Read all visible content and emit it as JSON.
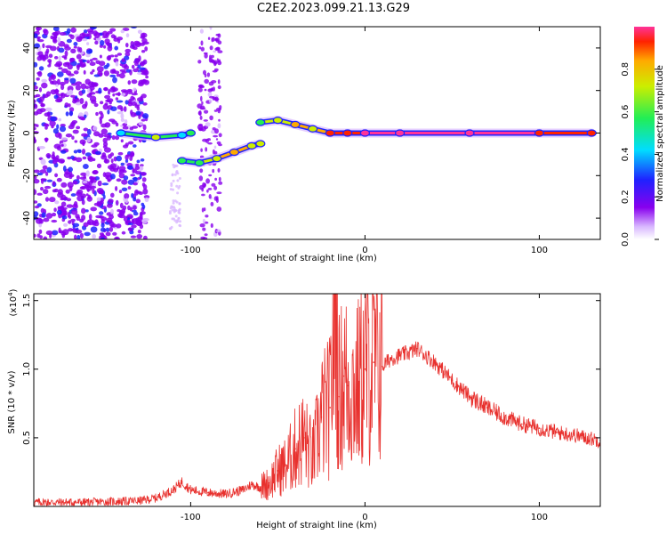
{
  "title": "C2E2.2023.099.21.13.G29",
  "chart_data": [
    {
      "type": "heatmap",
      "xlabel": "Height of straight line (km)",
      "ylabel": "Frequency (Hz)",
      "xlim": [
        -190,
        135
      ],
      "ylim": [
        -50,
        50
      ],
      "xticks": [
        -100,
        0,
        100
      ],
      "yticks": [
        -40,
        -20,
        0,
        20,
        40
      ],
      "colorbar": {
        "label": "Normalized spectral amplitude",
        "range": [
          0,
          1
        ],
        "ticks": [
          "0.0",
          "0.2",
          "0.4",
          "0.6",
          "0.8"
        ]
      },
      "signal_track": [
        {
          "x": -140,
          "y": 0,
          "amp": 0.3
        },
        {
          "x": -120,
          "y": -2,
          "amp": 0.6
        },
        {
          "x": -105,
          "y": -1,
          "amp": 0.4
        },
        {
          "x": -100,
          "y": 0,
          "amp": 0.5
        },
        {
          "x": -105,
          "y": -13,
          "amp": 0.45
        },
        {
          "x": -95,
          "y": -14,
          "amp": 0.5
        },
        {
          "x": -85,
          "y": -12,
          "amp": 0.7
        },
        {
          "x": -75,
          "y": -9,
          "amp": 0.75
        },
        {
          "x": -65,
          "y": -6,
          "amp": 0.7
        },
        {
          "x": -60,
          "y": -5,
          "amp": 0.65
        },
        {
          "x": -60,
          "y": 5,
          "amp": 0.55
        },
        {
          "x": -50,
          "y": 6,
          "amp": 0.6
        },
        {
          "x": -40,
          "y": 4,
          "amp": 0.75
        },
        {
          "x": -30,
          "y": 2,
          "amp": 0.7
        },
        {
          "x": -20,
          "y": 0,
          "amp": 0.85
        },
        {
          "x": -10,
          "y": 0,
          "amp": 0.9
        },
        {
          "x": 0,
          "y": 0,
          "amp": 0.95
        },
        {
          "x": 20,
          "y": 0,
          "amp": 0.95
        },
        {
          "x": 60,
          "y": 0,
          "amp": 0.95
        },
        {
          "x": 100,
          "y": 0,
          "amp": 0.92
        },
        {
          "x": 130,
          "y": 0,
          "amp": 0.85
        }
      ]
    },
    {
      "type": "line",
      "xlabel": "Height of straight line (km)",
      "ylabel": "SNR (10 * v/v)",
      "y_multiplier": "(x10",
      "y_multiplier_exp": "4",
      "xlim": [
        -190,
        135
      ],
      "ylim": [
        0,
        1.55
      ],
      "xticks": [
        -100,
        0,
        100
      ],
      "yticks": [
        "0.5",
        "1.0",
        "1.5"
      ],
      "color": "#e8312e",
      "x": [
        -190,
        -160,
        -130,
        -120,
        -110,
        -105,
        -100,
        -90,
        -80,
        -70,
        -65,
        -60,
        -55,
        -50,
        -45,
        -40,
        -35,
        -30,
        -25,
        -20,
        -17,
        -15,
        -12,
        -10,
        -5,
        0,
        5,
        10,
        15,
        20,
        25,
        30,
        40,
        50,
        60,
        70,
        80,
        90,
        100,
        110,
        120,
        135
      ],
      "y": [
        0.03,
        0.03,
        0.04,
        0.06,
        0.12,
        0.18,
        0.12,
        0.1,
        0.09,
        0.12,
        0.16,
        0.14,
        0.17,
        0.26,
        0.3,
        0.42,
        0.5,
        0.35,
        0.65,
        0.72,
        1.5,
        0.8,
        0.95,
        0.88,
        0.85,
        1.0,
        1.05,
        1.02,
        1.08,
        1.1,
        1.12,
        1.15,
        1.05,
        0.92,
        0.8,
        0.72,
        0.65,
        0.6,
        0.57,
        0.54,
        0.52,
        0.48
      ]
    }
  ]
}
